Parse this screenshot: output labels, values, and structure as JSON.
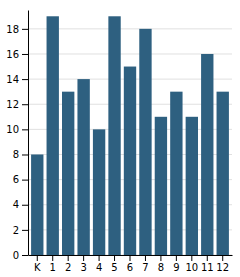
{
  "chart_data": {
    "type": "bar",
    "categories": [
      "K",
      "1",
      "2",
      "3",
      "4",
      "5",
      "6",
      "7",
      "8",
      "9",
      "10",
      "11",
      "12"
    ],
    "values": [
      8,
      19,
      13,
      14,
      10,
      19,
      15,
      18,
      11,
      13,
      11,
      16,
      13
    ],
    "color": "#2e6080",
    "ylim": [
      0,
      19.5
    ],
    "yticks": [
      0,
      2,
      4,
      6,
      8,
      10,
      12,
      14,
      16,
      18
    ],
    "grid": true
  }
}
